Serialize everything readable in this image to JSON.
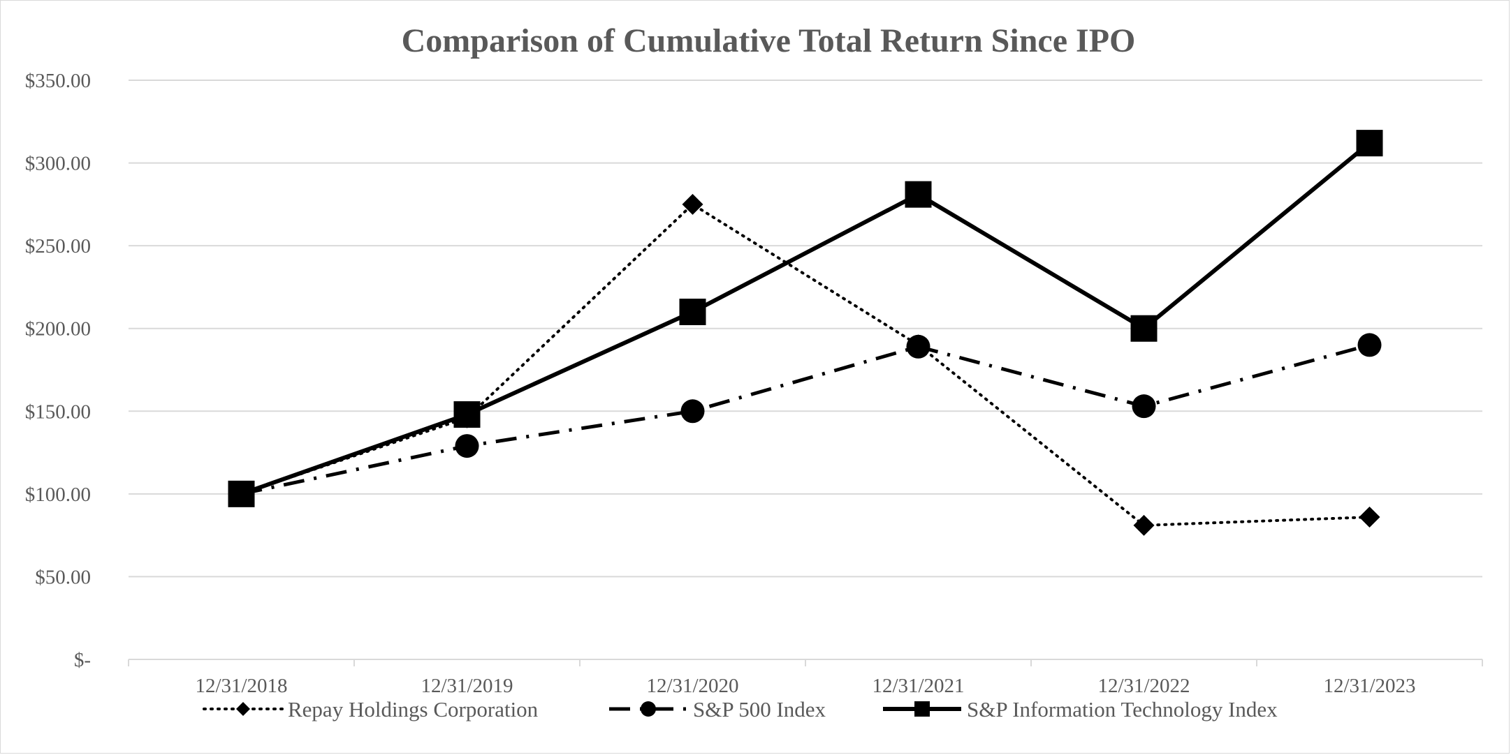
{
  "chart_data": {
    "type": "line",
    "title": "Comparison of Cumulative Total Return Since IPO",
    "xlabel": "",
    "ylabel": "",
    "categories": [
      "12/31/2018",
      "12/31/2019",
      "12/31/2020",
      "12/31/2021",
      "12/31/2022",
      "12/31/2023"
    ],
    "ylim": [
      0,
      350
    ],
    "ytick_values": [
      0,
      50,
      100,
      150,
      200,
      250,
      300,
      350
    ],
    "ytick_labels": [
      "$-",
      "$50.00",
      "$100.00",
      "$150.00",
      "$200.00",
      "$250.00",
      "$300.00",
      "$350.00"
    ],
    "grid": true,
    "legend_position": "bottom",
    "series": [
      {
        "name": "Repay Holdings Corporation",
        "line_style": "dotted",
        "marker": "diamond",
        "color": "#000000",
        "values": [
          100,
          146,
          275,
          190,
          81,
          86
        ]
      },
      {
        "name": "S&P 500 Index",
        "line_style": "dash-dot",
        "marker": "circle",
        "color": "#000000",
        "values": [
          100,
          129,
          150,
          189,
          153,
          190
        ]
      },
      {
        "name": "S&P Information Technology Index",
        "line_style": "solid",
        "marker": "square",
        "color": "#000000",
        "values": [
          100,
          148,
          210,
          281,
          200,
          312
        ]
      }
    ]
  }
}
